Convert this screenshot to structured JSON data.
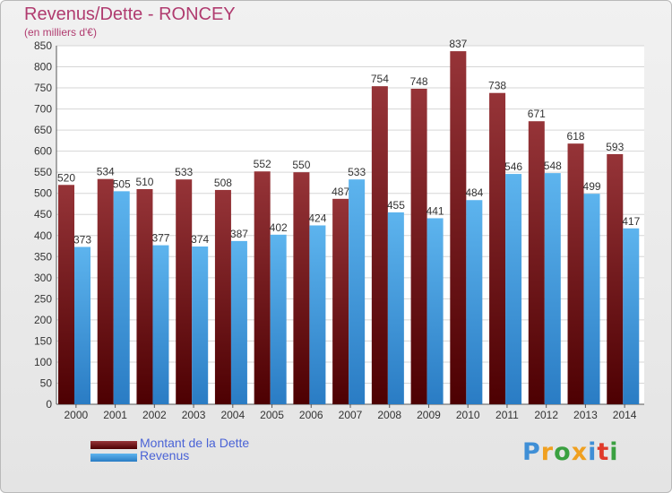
{
  "header": {
    "title": "Revenus/Dette - RONCEY",
    "subtitle": "(en milliers d'€)"
  },
  "chart_data": {
    "type": "bar",
    "categories": [
      "2000",
      "2001",
      "2002",
      "2003",
      "2004",
      "2005",
      "2006",
      "2007",
      "2008",
      "2009",
      "2010",
      "2011",
      "2012",
      "2013",
      "2014"
    ],
    "series": [
      {
        "name": "Montant de la Dette",
        "color": "#8b1f22",
        "values": [
          520,
          534,
          510,
          533,
          508,
          552,
          550,
          487,
          754,
          748,
          837,
          738,
          671,
          618,
          593
        ]
      },
      {
        "name": "Revenus",
        "color": "#3a9ae0",
        "values": [
          373,
          505,
          377,
          374,
          387,
          402,
          424,
          533,
          455,
          441,
          484,
          546,
          548,
          499,
          417
        ]
      }
    ],
    "ylim": [
      0,
      850
    ],
    "yticks": [
      0,
      50,
      100,
      150,
      200,
      250,
      300,
      350,
      400,
      450,
      500,
      550,
      600,
      650,
      700,
      750,
      800,
      850
    ],
    "grid": true,
    "legend_position": "bottom-left",
    "data_labels": true
  },
  "legend": {
    "items": [
      {
        "label": "Montant de la Dette"
      },
      {
        "label": "Revenus"
      }
    ]
  },
  "logo": {
    "letters": [
      "P",
      "r",
      "o",
      "x",
      "i",
      "t",
      "i"
    ],
    "colors": [
      "#3f8fd6",
      "#f0a020",
      "#3aa040",
      "#f0a020",
      "#3f8fd6",
      "#e03a2a",
      "#3aa040"
    ]
  }
}
